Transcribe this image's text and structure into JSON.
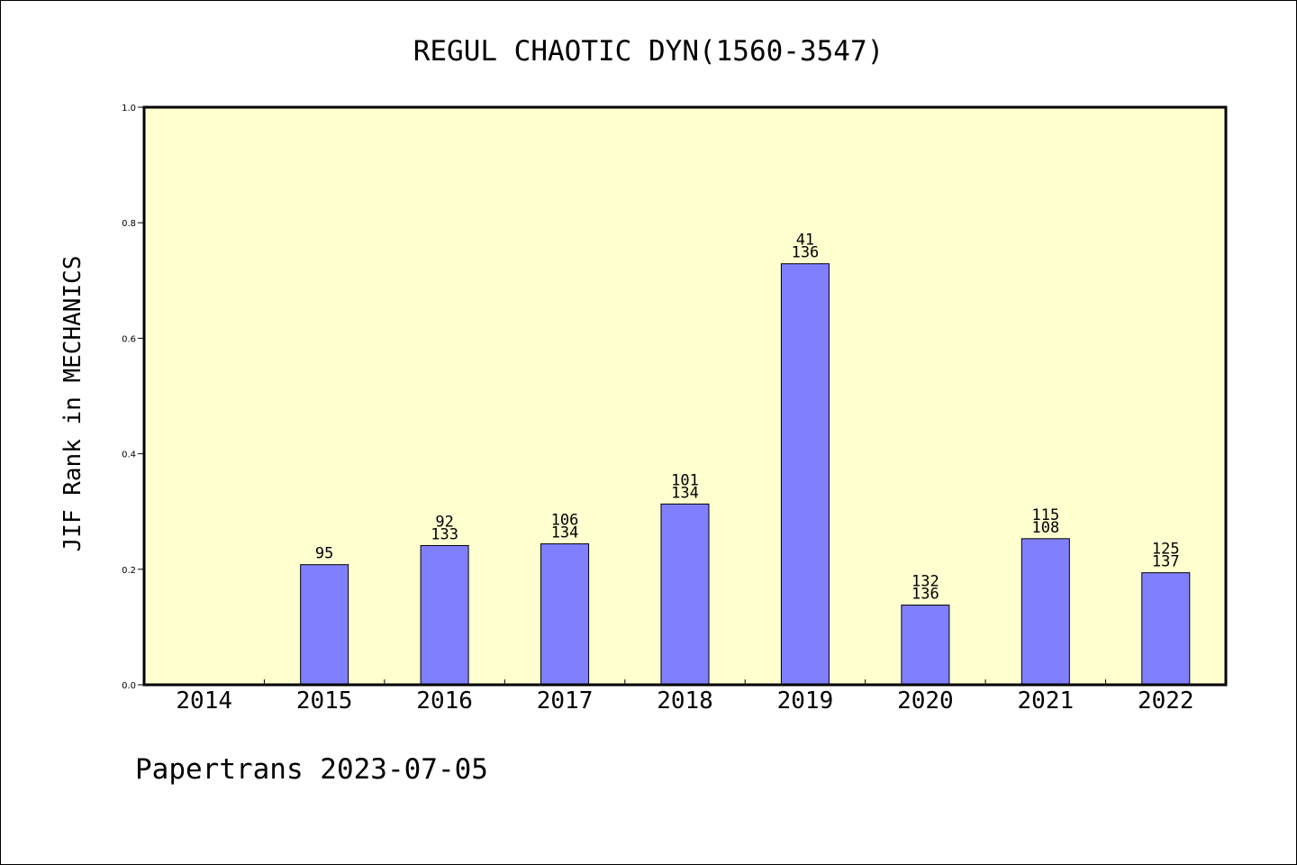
{
  "chart_data": {
    "type": "bar",
    "title": "REGUL CHAOTIC DYN(1560-3547)",
    "ylabel": "JIF Rank in MECHANICS",
    "xlabel": "",
    "ylim": [
      0,
      1.0
    ],
    "yticks": [
      "0.0",
      "0.2",
      "0.4",
      "0.6",
      "0.8",
      "1.0"
    ],
    "categories": [
      "2014",
      "2015",
      "2016",
      "2017",
      "2018",
      "2019",
      "2020",
      "2021",
      "2022"
    ],
    "values": [
      null,
      0.208,
      0.241,
      0.244,
      0.313,
      0.729,
      0.138,
      0.253,
      0.194
    ],
    "labels": [
      [],
      [
        "95"
      ],
      [
        "92",
        "133"
      ],
      [
        "106",
        "134"
      ],
      [
        "101",
        "134"
      ],
      [
        "41",
        "136"
      ],
      [
        "132",
        "136"
      ],
      [
        "115",
        "108"
      ],
      [
        "125",
        "137"
      ]
    ],
    "grid": false,
    "colors": {
      "bar": "#8080ff",
      "plot_bg": "#ffffd0"
    }
  },
  "footer": "Papertrans 2023-07-05"
}
